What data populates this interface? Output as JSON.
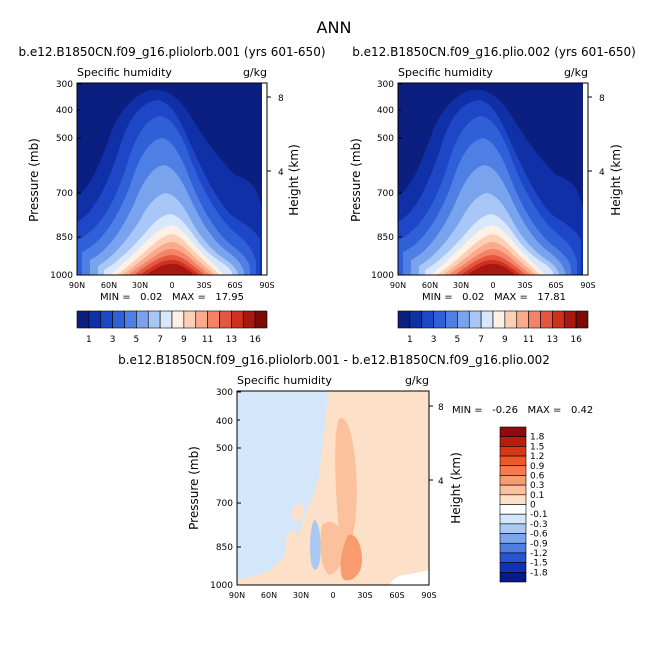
{
  "page_title": "ANN",
  "chart_data": [
    {
      "type": "heatmap",
      "title": "b.e12.B1850CN.f09_g16.pliolorb.001 (yrs 601-650)",
      "left_subtitle": "Specific humidity",
      "right_subtitle": "g/kg",
      "xlabel": "",
      "ylabel": "Pressure (mb)",
      "y2label": "Height (km)",
      "x_ticks": [
        "90N",
        "60N",
        "30N",
        "0",
        "30S",
        "60S",
        "90S"
      ],
      "y_ticks": [
        "300",
        "400",
        "500",
        "700",
        "850",
        "1000"
      ],
      "y_tick_values": [
        300,
        400,
        500,
        700,
        850,
        1000
      ],
      "ylim": [
        1000,
        300
      ],
      "y2_ticks": [
        "8",
        "4"
      ],
      "stats_text": "MIN =   0.02   MAX =   17.95",
      "min": 0.02,
      "max": 17.95,
      "colorbar_labels": [
        "1",
        "3",
        "5",
        "7",
        "9",
        "11",
        "13",
        "16"
      ],
      "colorbar_levels": [
        1,
        2,
        3,
        4,
        5,
        6,
        7,
        8,
        9,
        10,
        11,
        12,
        13,
        14,
        16
      ],
      "colorbar_colors": [
        "#0b1f80",
        "#1030a8",
        "#1e47c8",
        "#3060d8",
        "#4f7fe4",
        "#7aa3ee",
        "#a8c6f6",
        "#d8e7fc",
        "#fff0e6",
        "#fdd0b6",
        "#fbab8c",
        "#f4836a",
        "#e4573f",
        "#d03020",
        "#a81810",
        "#7e0a08"
      ]
    },
    {
      "type": "heatmap",
      "title": "b.e12.B1850CN.f09_g16.plio.002 (yrs 601-650)",
      "left_subtitle": "Specific humidity",
      "right_subtitle": "g/kg",
      "xlabel": "",
      "ylabel": "Pressure (mb)",
      "y2label": "Height (km)",
      "x_ticks": [
        "90N",
        "60N",
        "30N",
        "0",
        "30S",
        "60S",
        "90S"
      ],
      "y_ticks": [
        "300",
        "400",
        "500",
        "700",
        "850",
        "1000"
      ],
      "y_tick_values": [
        300,
        400,
        500,
        700,
        850,
        1000
      ],
      "ylim": [
        1000,
        300
      ],
      "y2_ticks": [
        "8",
        "4"
      ],
      "stats_text": "MIN =   0.02   MAX =   17.81",
      "min": 0.02,
      "max": 17.81,
      "colorbar_labels": [
        "1",
        "3",
        "5",
        "7",
        "9",
        "11",
        "13",
        "16"
      ],
      "colorbar_levels": [
        1,
        2,
        3,
        4,
        5,
        6,
        7,
        8,
        9,
        10,
        11,
        12,
        13,
        14,
        16
      ],
      "colorbar_colors": [
        "#0b1f80",
        "#1030a8",
        "#1e47c8",
        "#3060d8",
        "#4f7fe4",
        "#7aa3ee",
        "#a8c6f6",
        "#d8e7fc",
        "#fff0e6",
        "#fdd0b6",
        "#fbab8c",
        "#f4836a",
        "#e4573f",
        "#d03020",
        "#a81810",
        "#7e0a08"
      ]
    },
    {
      "type": "heatmap",
      "title": "b.e12.B1850CN.f09_g16.pliolorb.001 - b.e12.B1850CN.f09_g16.plio.002",
      "left_subtitle": "Specific humidity",
      "right_subtitle": "g/kg",
      "xlabel": "",
      "ylabel": "Pressure (mb)",
      "y2label": "Height (km)",
      "x_ticks": [
        "90N",
        "60N",
        "30N",
        "0",
        "30S",
        "60S",
        "90S"
      ],
      "y_ticks": [
        "300",
        "400",
        "500",
        "700",
        "850",
        "1000"
      ],
      "y_tick_values": [
        300,
        400,
        500,
        700,
        850,
        1000
      ],
      "ylim": [
        1000,
        300
      ],
      "y2_ticks": [
        "8",
        "4"
      ],
      "stats_text": "MIN =   -0.26   MAX =   0.42",
      "min": -0.26,
      "max": 0.42,
      "colorbar_labels": [
        "1.8",
        "1.5",
        "1.2",
        "0.9",
        "0.6",
        "0.3",
        "0.1",
        "0",
        "-0.1",
        "-0.3",
        "-0.6",
        "-0.9",
        "-1.2",
        "-1.5",
        "-1.8"
      ],
      "colorbar_colors": [
        "#8c0c0c",
        "#b81c10",
        "#d8381a",
        "#ec5a2a",
        "#f47c4a",
        "#f89c70",
        "#fbc09c",
        "#fde0c8",
        "#ffffff",
        "#d4e6fa",
        "#aac8f2",
        "#7ca6ea",
        "#4e7ee0",
        "#2456d2",
        "#1232b4",
        "#081a88"
      ]
    }
  ]
}
